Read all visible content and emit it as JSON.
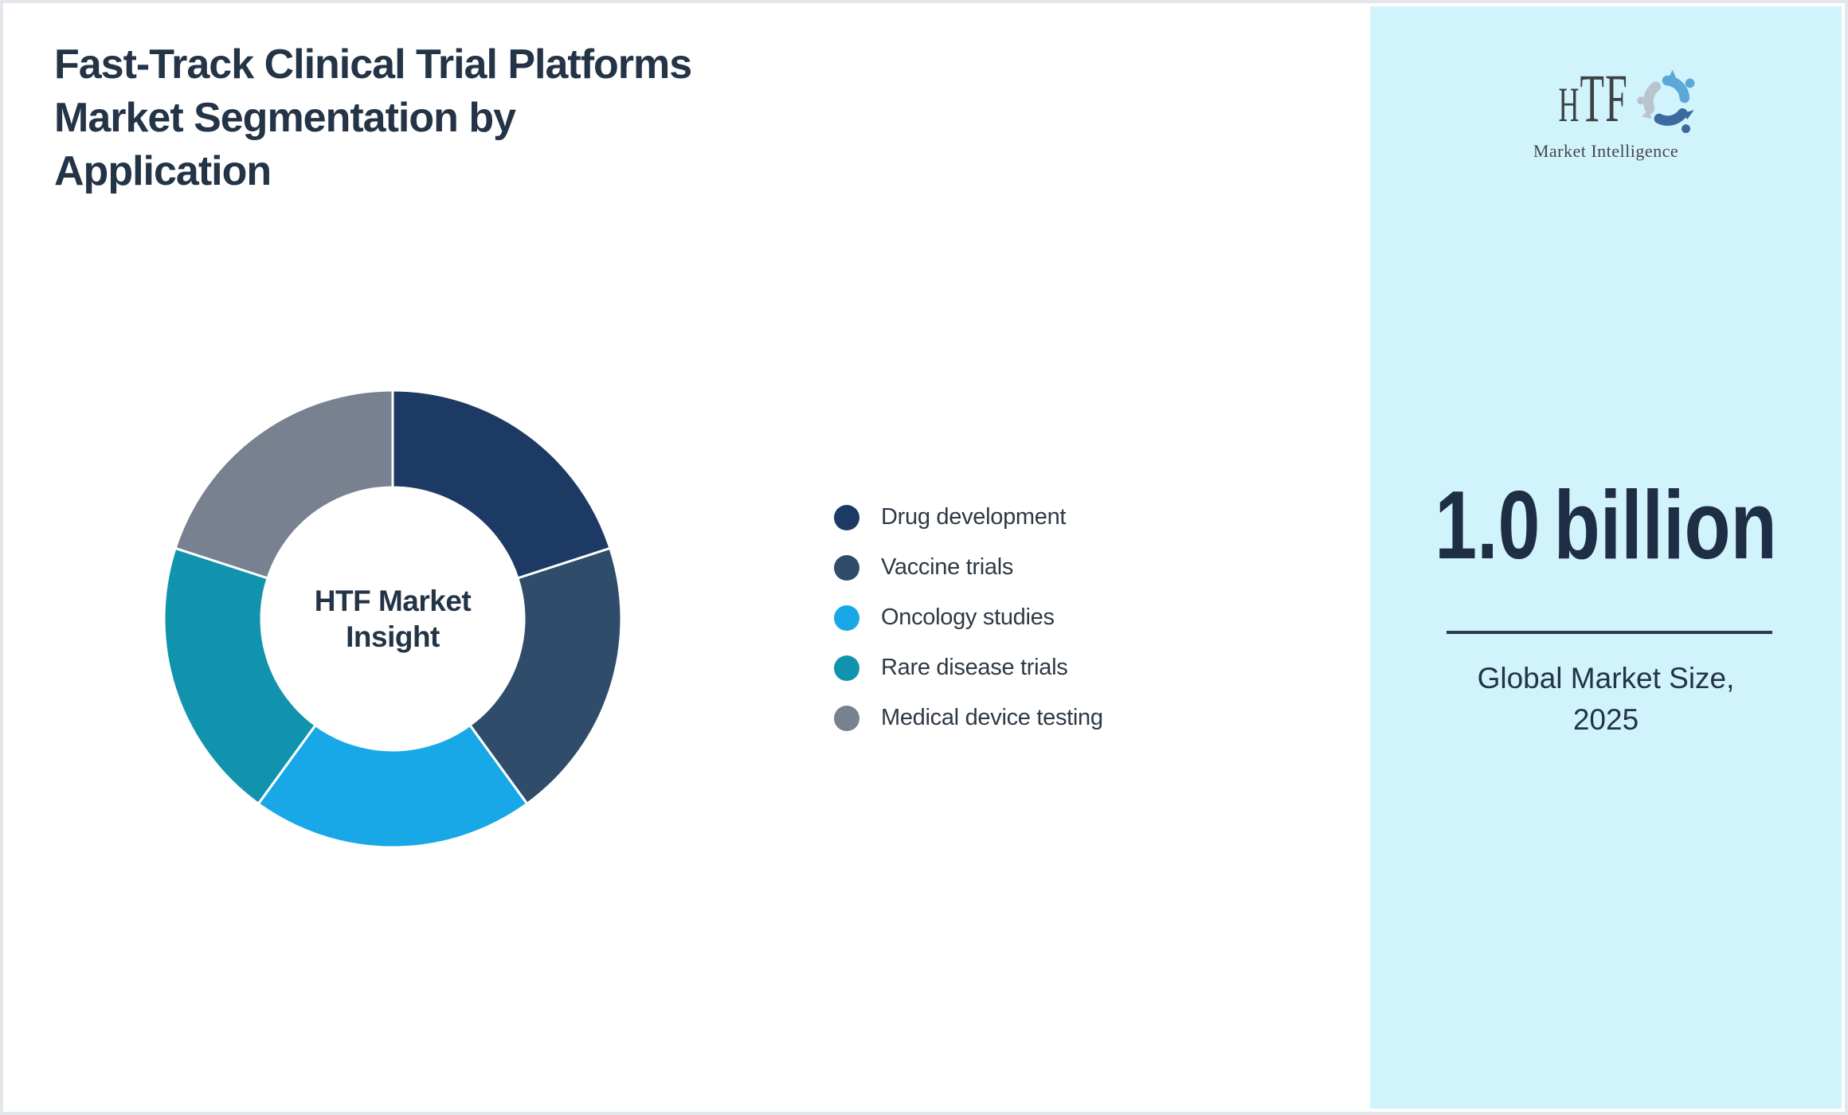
{
  "page": {
    "title_lines": [
      "Fast-Track Clinical Trial Platforms",
      "Market Segmentation by",
      "Application"
    ],
    "background": "#ffffff",
    "frame_border_color": "#e3e6ea"
  },
  "chart_data": {
    "type": "pie",
    "variant": "donut",
    "title": "Fast-Track Clinical Trial Platforms Market Segmentation by Application",
    "categories": [
      "Drug development",
      "Vaccine trials",
      "Oncology studies",
      "Rare disease trials",
      "Medical device testing"
    ],
    "values": [
      20,
      20,
      20,
      20,
      20
    ],
    "unit": "%",
    "segments": [
      {
        "label": "Drug development",
        "value_pct": 20,
        "color": "#1c3a63"
      },
      {
        "label": "Vaccine trials",
        "value_pct": 20,
        "color": "#2f4d6b"
      },
      {
        "label": "Oncology studies",
        "value_pct": 20,
        "color": "#18a8e8"
      },
      {
        "label": "Rare disease trials",
        "value_pct": 20,
        "color": "#1193ad"
      },
      {
        "label": "Medical device testing",
        "value_pct": 20,
        "color": "#78818f"
      }
    ],
    "center_label": "HTF Market Insight",
    "center_label_lines": [
      "HTF Market",
      "Insight"
    ],
    "start_angle_deg": 0,
    "direction": "clockwise",
    "legend_position": "right-of-chart",
    "donut_hole_ratio": 0.57,
    "separator_color": "#ffffff"
  },
  "sidebar": {
    "background": "#d1f3fb",
    "logo": {
      "text": "HTF",
      "subtext": "Market Intelligence",
      "mark_colors": [
        "#5ba8d8",
        "#b9c4ce",
        "#3a6b9e"
      ]
    },
    "market_size": {
      "value": "1.0",
      "unit": "billion"
    },
    "caption_lines": [
      "Global Market Size,",
      "2025"
    ]
  }
}
